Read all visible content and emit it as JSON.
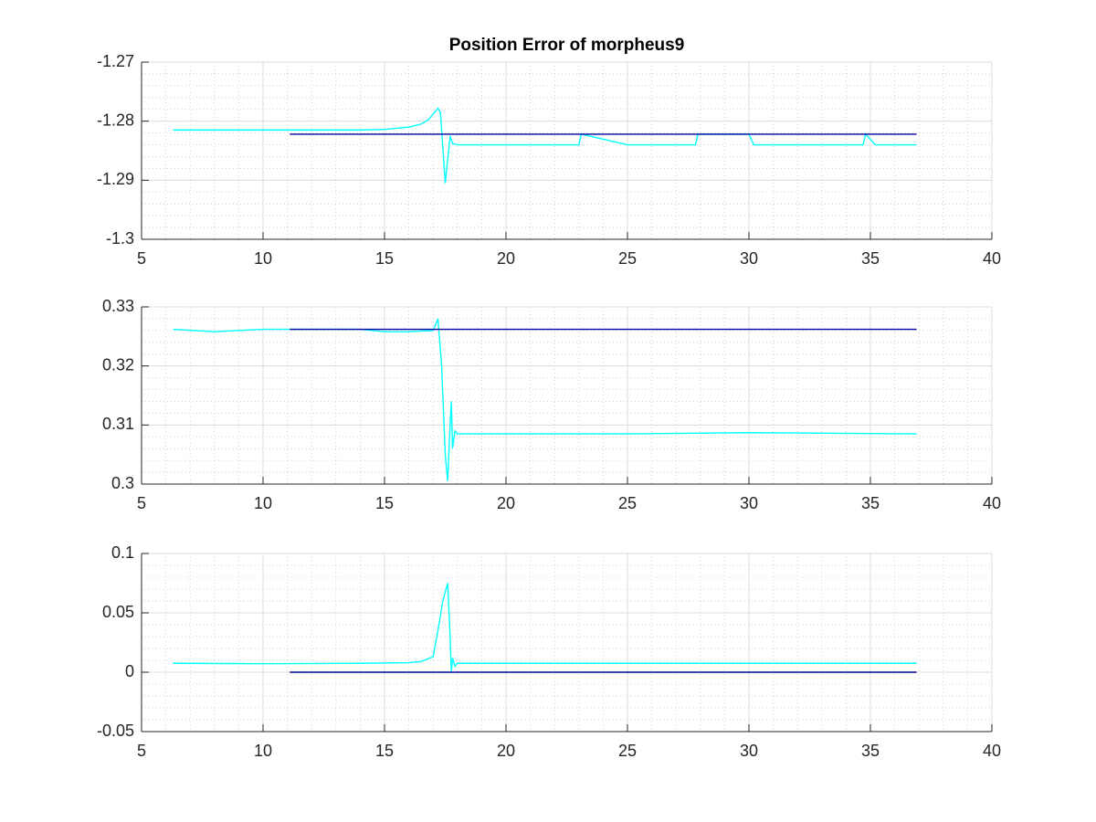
{
  "chart_data": [
    {
      "type": "line",
      "title": "Position Error of morpheus9",
      "xlim": [
        5,
        40
      ],
      "xticks": [
        5,
        10,
        15,
        20,
        25,
        30,
        35,
        40
      ],
      "ylim": [
        -1.3,
        -1.27
      ],
      "yticks": [
        -1.3,
        -1.29,
        -1.28,
        -1.27
      ],
      "grid": true,
      "minor_grid": true,
      "series": [
        {
          "color": "#00ffff",
          "x": [
            6.3,
            7,
            8,
            9,
            10,
            11,
            12,
            13,
            14,
            15,
            15.5,
            16,
            16.5,
            16.8,
            17,
            17.2,
            17.3,
            17.4,
            17.5,
            17.6,
            17.7,
            17.8,
            18,
            19,
            20,
            22,
            23,
            23.1,
            25,
            27.8,
            27.9,
            30,
            30.2,
            33,
            34.7,
            34.8,
            35.2,
            36.9
          ],
          "values": [
            -1.2815,
            -1.2815,
            -1.2815,
            -1.2815,
            -1.2815,
            -1.2815,
            -1.2815,
            -1.2815,
            -1.2815,
            -1.2814,
            -1.2812,
            -1.281,
            -1.2805,
            -1.2798,
            -1.2788,
            -1.2778,
            -1.2785,
            -1.2845,
            -1.2905,
            -1.2865,
            -1.2825,
            -1.2838,
            -1.284,
            -1.284,
            -1.284,
            -1.284,
            -1.284,
            -1.2822,
            -1.284,
            -1.284,
            -1.2822,
            -1.2822,
            -1.284,
            -1.284,
            -1.284,
            -1.2822,
            -1.284,
            -1.284
          ]
        },
        {
          "color": "#0000a0",
          "x": [
            11.1,
            36.9
          ],
          "values": [
            -1.2822,
            -1.2822
          ]
        }
      ]
    },
    {
      "type": "line",
      "xlim": [
        5,
        40
      ],
      "xticks": [
        5,
        10,
        15,
        20,
        25,
        30,
        35,
        40
      ],
      "ylim": [
        0.3,
        0.33
      ],
      "yticks": [
        0.3,
        0.31,
        0.32,
        0.33
      ],
      "grid": true,
      "minor_grid": true,
      "series": [
        {
          "color": "#00ffff",
          "x": [
            6.3,
            8,
            10,
            12,
            14,
            15,
            16,
            17,
            17.2,
            17.35,
            17.5,
            17.6,
            17.7,
            17.75,
            17.8,
            17.9,
            18,
            20,
            25,
            30,
            36.9
          ],
          "values": [
            0.3262,
            0.3258,
            0.3262,
            0.3262,
            0.3262,
            0.3258,
            0.3258,
            0.326,
            0.328,
            0.32,
            0.305,
            0.3005,
            0.31,
            0.314,
            0.306,
            0.309,
            0.3085,
            0.3085,
            0.3085,
            0.3087,
            0.3085
          ]
        },
        {
          "color": "#0000a0",
          "x": [
            11.1,
            36.9
          ],
          "values": [
            0.3262,
            0.3262
          ]
        }
      ]
    },
    {
      "type": "line",
      "xlim": [
        5,
        40
      ],
      "xticks": [
        5,
        10,
        15,
        20,
        25,
        30,
        35,
        40
      ],
      "ylim": [
        -0.05,
        0.1
      ],
      "yticks": [
        -0.05,
        0,
        0.05,
        0.1
      ],
      "grid": true,
      "minor_grid": true,
      "series": [
        {
          "color": "#00ffff",
          "x": [
            6.3,
            10,
            14,
            16,
            16.5,
            17,
            17.2,
            17.4,
            17.6,
            17.7,
            17.75,
            17.8,
            17.9,
            18,
            25,
            36.9
          ],
          "values": [
            0.0075,
            0.0072,
            0.0075,
            0.008,
            0.009,
            0.013,
            0.035,
            0.06,
            0.075,
            0.03,
            0,
            0.012,
            0.005,
            0.0075,
            0.0075,
            0.0075
          ]
        },
        {
          "color": "#0000a0",
          "x": [
            11.1,
            36.9
          ],
          "values": [
            0,
            0
          ]
        }
      ]
    }
  ]
}
